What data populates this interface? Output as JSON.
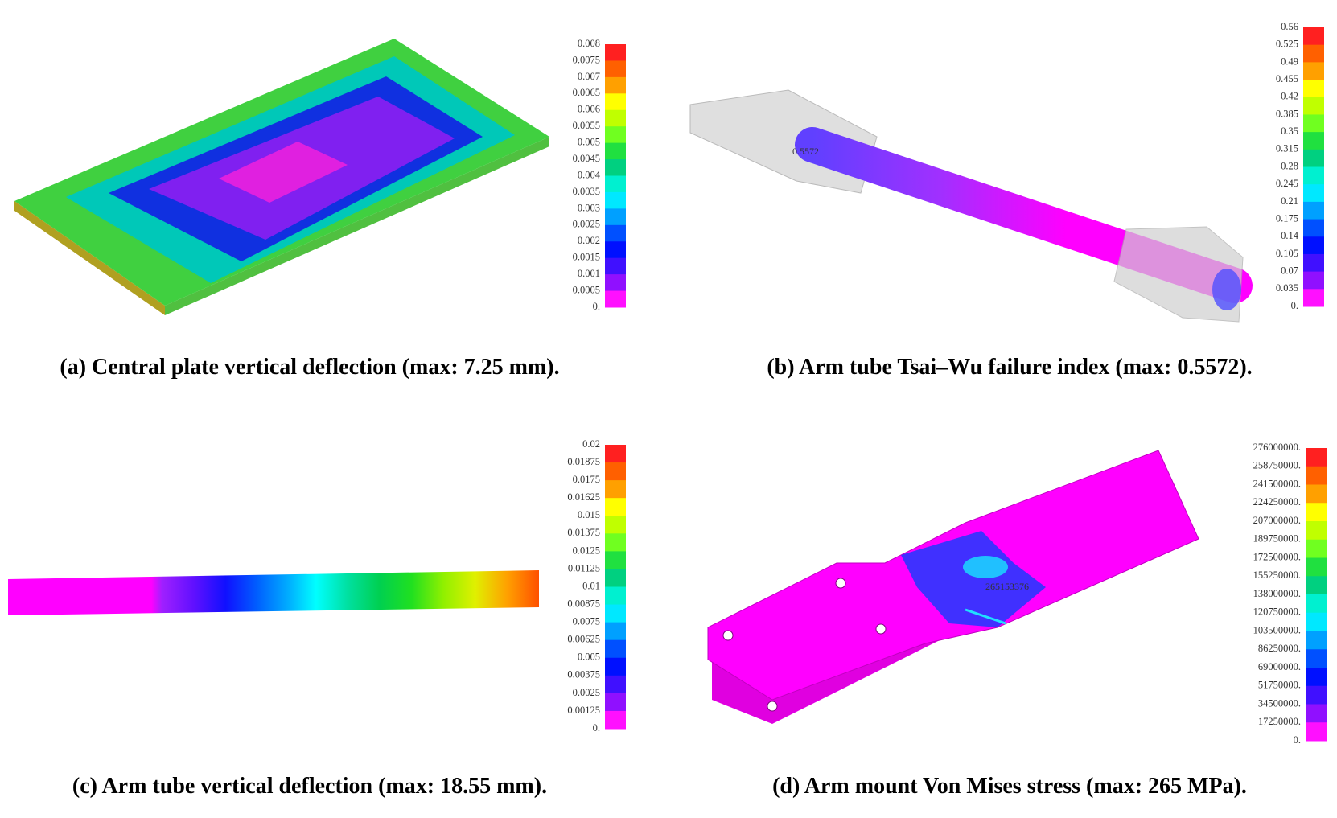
{
  "panels": [
    {
      "caption": "(a) Central plate vertical deflection (max: 7.25 mm).",
      "colorbar_labels": [
        "0.008",
        "0.0075",
        "0.007",
        "0.0065",
        "0.006",
        "0.0055",
        "0.005",
        "0.0045",
        "0.004",
        "0.0035",
        "0.003",
        "0.0025",
        "0.002",
        "0.0015",
        "0.001",
        "0.0005",
        "0."
      ]
    },
    {
      "caption": "(b) Arm tube Tsai–Wu failure index (max: 0.5572).",
      "annotation": "0.5572",
      "colorbar_labels": [
        "0.56",
        "0.525",
        "0.49",
        "0.455",
        "0.42",
        "0.385",
        "0.35",
        "0.315",
        "0.28",
        "0.245",
        "0.21",
        "0.175",
        "0.14",
        "0.105",
        "0.07",
        "0.035",
        "0."
      ]
    },
    {
      "caption": "(c) Arm tube vertical deflection (max: 18.55 mm).",
      "colorbar_labels": [
        "0.02",
        "0.01875",
        "0.0175",
        "0.01625",
        "0.015",
        "0.01375",
        "0.0125",
        "0.01125",
        "0.01",
        "0.00875",
        "0.0075",
        "0.00625",
        "0.005",
        "0.00375",
        "0.0025",
        "0.00125",
        "0."
      ]
    },
    {
      "caption": "(d) Arm mount Von Mises stress (max: 265 MPa).",
      "annotation": "265153376",
      "colorbar_labels": [
        "276000000.",
        "258750000.",
        "241500000.",
        "224250000.",
        "207000000.",
        "189750000.",
        "172500000.",
        "155250000.",
        "138000000.",
        "120750000.",
        "103500000.",
        "86250000.",
        "69000000.",
        "51750000.",
        "34500000.",
        "17250000.",
        "0."
      ]
    }
  ]
}
